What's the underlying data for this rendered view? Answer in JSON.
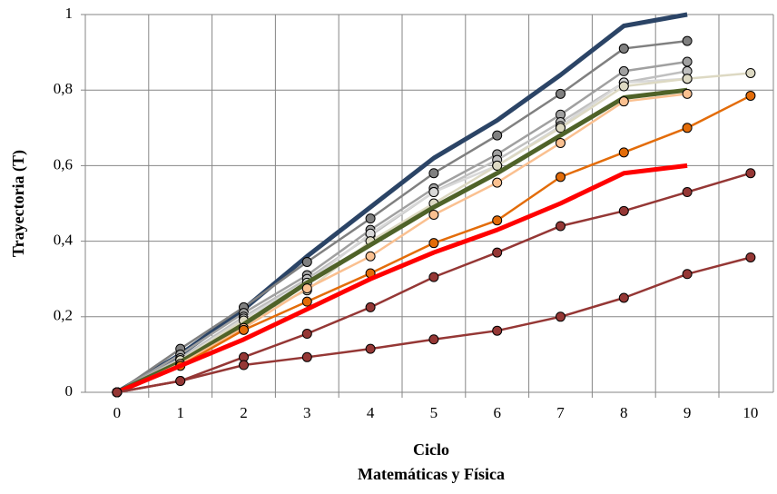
{
  "chart_data": {
    "type": "line",
    "title": "Matemáticas y Física",
    "x_label": "Ciclo",
    "y_label": "Trayectoria (T)",
    "categories": [
      "0",
      "1",
      "2",
      "3",
      "4",
      "5",
      "6",
      "7",
      "8",
      "9",
      "10"
    ],
    "ylim": [
      0,
      1
    ],
    "yticks": [
      0,
      {
        "value": 0.2,
        "label": "0,2"
      },
      {
        "value": 0.4,
        "label": "0,4"
      },
      {
        "value": 0.6,
        "label": "0,6"
      },
      {
        "value": 0.8,
        "label": "0,8"
      },
      1
    ],
    "grid": true,
    "series": [
      {
        "color": "#2b4466",
        "width": 5,
        "marker": false,
        "values": [
          0,
          0.1,
          0.22,
          0.36,
          0.49,
          0.62,
          0.72,
          0.84,
          0.97,
          1.0,
          null
        ]
      },
      {
        "color": "#808080",
        "width": 2.5,
        "marker": true,
        "values": [
          0,
          0.115,
          0.225,
          0.345,
          0.46,
          0.58,
          0.68,
          0.79,
          0.91,
          0.93,
          null
        ]
      },
      {
        "color": "#a0a0a0",
        "width": 2.5,
        "marker": true,
        "values": [
          0,
          0.1,
          0.21,
          0.31,
          0.43,
          0.54,
          0.63,
          0.735,
          0.85,
          0.875,
          null
        ]
      },
      {
        "color": "#c0c0c0",
        "width": 2.5,
        "marker": true,
        "values": [
          0,
          0.09,
          0.2,
          0.3,
          0.415,
          0.53,
          0.615,
          0.715,
          0.82,
          0.85,
          null
        ]
      },
      {
        "color": "#d8d8d8",
        "width": 2.5,
        "marker": true,
        "values": [
          0,
          0.085,
          0.195,
          0.29,
          0.42,
          0.53,
          0.6,
          0.705,
          0.82,
          0.83,
          null
        ]
      },
      {
        "color": "#ddd9c3",
        "width": 2.5,
        "marker": true,
        "values": [
          0,
          0.085,
          0.19,
          0.27,
          0.4,
          0.5,
          0.6,
          0.7,
          0.81,
          0.83,
          0.845
        ]
      },
      {
        "color": "#4f6228",
        "width": 5,
        "marker": false,
        "values": [
          0,
          0.08,
          0.18,
          0.29,
          0.39,
          0.49,
          0.58,
          0.68,
          0.78,
          0.8,
          null
        ]
      },
      {
        "color": "#fac090",
        "width": 2.5,
        "marker": true,
        "values": [
          0,
          0.075,
          0.17,
          0.275,
          0.36,
          0.47,
          0.555,
          0.66,
          0.77,
          0.79,
          null
        ]
      },
      {
        "color": "#e36c09",
        "width": 2.5,
        "marker": true,
        "values": [
          0,
          0.07,
          0.165,
          0.24,
          0.315,
          0.395,
          0.455,
          0.57,
          0.635,
          0.7,
          0.785
        ]
      },
      {
        "color": "#ff0000",
        "width": 5,
        "marker": false,
        "values": [
          0,
          0.07,
          0.14,
          0.22,
          0.3,
          0.37,
          0.43,
          0.5,
          0.58,
          0.6,
          null
        ]
      },
      {
        "color": "#953735",
        "width": 2.5,
        "marker": true,
        "values": [
          0,
          0.03,
          0.093,
          0.155,
          0.225,
          0.305,
          0.37,
          0.44,
          0.48,
          0.53,
          0.58
        ]
      },
      {
        "color": "#953735",
        "width": 2.5,
        "marker": true,
        "values": [
          0,
          0.03,
          0.072,
          0.093,
          0.115,
          0.14,
          0.163,
          0.2,
          0.25,
          0.313,
          0.357
        ]
      }
    ]
  }
}
